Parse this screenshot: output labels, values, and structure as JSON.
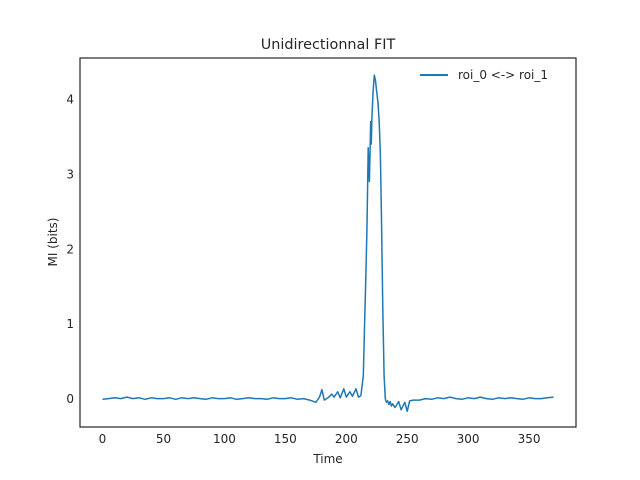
{
  "chart_data": {
    "type": "line",
    "title": "Unidirectionnal FIT",
    "xlabel": "Time",
    "ylabel": "MI (bits)",
    "xlim": [
      -18.5,
      388.5
    ],
    "ylim": [
      -0.38,
      4.55
    ],
    "x_ticks": [
      0,
      50,
      100,
      150,
      200,
      250,
      300,
      350
    ],
    "y_ticks": [
      0,
      1,
      2,
      3,
      4
    ],
    "grid": false,
    "legend_position": "top-right",
    "series": [
      {
        "name": "roi_0 <-> roi_1",
        "color": "#1f77b4",
        "x": [
          0,
          5,
          10,
          15,
          20,
          25,
          30,
          35,
          40,
          45,
          50,
          55,
          60,
          65,
          70,
          75,
          80,
          85,
          90,
          95,
          100,
          105,
          110,
          115,
          120,
          125,
          130,
          135,
          140,
          145,
          150,
          155,
          160,
          165,
          170,
          175,
          178,
          180,
          182,
          185,
          188,
          190,
          193,
          195,
          198,
          200,
          203,
          205,
          208,
          210,
          212,
          214,
          215,
          216,
          217,
          218,
          219,
          220,
          220.5,
          221,
          222,
          223,
          224,
          225,
          226,
          227,
          228,
          229,
          230,
          231,
          232,
          233,
          234,
          235,
          236,
          237,
          238,
          240,
          243,
          245,
          248,
          250,
          252,
          255,
          260,
          265,
          270,
          275,
          280,
          285,
          290,
          295,
          300,
          305,
          310,
          315,
          320,
          325,
          330,
          335,
          340,
          345,
          350,
          355,
          360,
          365,
          370
        ],
        "y": [
          -0.01,
          0.0,
          0.01,
          0.0,
          0.02,
          0.0,
          0.01,
          -0.01,
          0.01,
          0.0,
          0.0,
          0.01,
          -0.01,
          0.01,
          0.0,
          0.01,
          0.0,
          -0.01,
          0.01,
          0.0,
          0.0,
          0.01,
          -0.01,
          0.0,
          0.01,
          0.0,
          0.0,
          -0.01,
          0.01,
          0.0,
          0.0,
          0.01,
          -0.01,
          0.0,
          -0.02,
          -0.05,
          0.02,
          0.12,
          -0.02,
          0.01,
          0.06,
          0.02,
          0.09,
          0.01,
          0.13,
          0.02,
          0.09,
          0.03,
          0.13,
          0.02,
          0.04,
          0.3,
          1.0,
          1.6,
          2.3,
          3.35,
          2.9,
          3.7,
          3.4,
          3.75,
          4.1,
          4.32,
          4.25,
          4.1,
          3.95,
          3.7,
          3.25,
          2.3,
          1.2,
          0.3,
          0.0,
          -0.05,
          -0.03,
          -0.08,
          -0.04,
          -0.1,
          -0.07,
          -0.12,
          -0.04,
          -0.15,
          -0.05,
          -0.17,
          -0.03,
          -0.02,
          -0.02,
          0.0,
          -0.01,
          0.01,
          0.0,
          0.02,
          0.0,
          -0.01,
          0.01,
          0.0,
          0.02,
          0.0,
          -0.01,
          0.01,
          0.0,
          0.01,
          0.0,
          -0.01,
          0.01,
          0.0,
          0.0,
          0.01,
          0.02
        ]
      }
    ]
  }
}
